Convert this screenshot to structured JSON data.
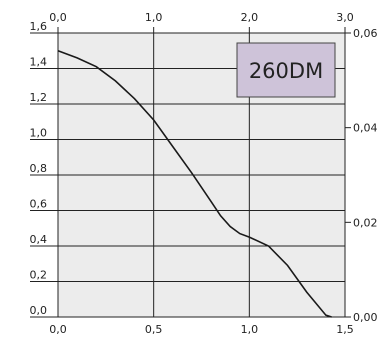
{
  "chart_data": {
    "type": "line",
    "title": "",
    "xlabel": "",
    "ylabel": "",
    "label_box": {
      "text": "260DM",
      "fill": "#cec3d9",
      "border": "#444444"
    },
    "axes": {
      "bottom": {
        "range": [
          0,
          1.5
        ],
        "ticks": [
          "0,0",
          "0,5",
          "1,0",
          "1,5"
        ],
        "tick_values": [
          0,
          0.5,
          1.0,
          1.5
        ]
      },
      "top": {
        "range": [
          0,
          3.0
        ],
        "ticks": [
          "0,0",
          "1,0",
          "2,0",
          "3,0"
        ],
        "tick_values": [
          0,
          1.0,
          2.0,
          3.0
        ]
      },
      "left": {
        "range": [
          0,
          1.6
        ],
        "ticks": [
          "0,0",
          "0,2",
          "0,4",
          "0,6",
          "0,8",
          "1,0",
          "1,2",
          "1,4",
          "1,6"
        ],
        "tick_values": [
          0,
          0.2,
          0.4,
          0.6,
          0.8,
          1.0,
          1.2,
          1.4,
          1.6
        ]
      },
      "right": {
        "range": [
          0,
          0.06
        ],
        "ticks": [
          "0,00",
          "0,02",
          "0,04",
          "0,06"
        ],
        "tick_values": [
          0,
          0.02,
          0.04,
          0.06
        ]
      }
    },
    "grid": true,
    "colors": {
      "plot_background": "#ececec",
      "grid": "#222222",
      "line": "#1a1a1a"
    },
    "series": [
      {
        "x": [
          0.0,
          0.1,
          0.2,
          0.3,
          0.4,
          0.5,
          0.6,
          0.7,
          0.8,
          0.85,
          0.9,
          0.95,
          1.0,
          1.1,
          1.2,
          1.3,
          1.4,
          1.43
        ],
        "y": [
          1.5,
          1.46,
          1.41,
          1.33,
          1.23,
          1.11,
          0.96,
          0.81,
          0.65,
          0.57,
          0.51,
          0.47,
          0.45,
          0.4,
          0.29,
          0.14,
          0.01,
          0.0
        ]
      }
    ]
  }
}
